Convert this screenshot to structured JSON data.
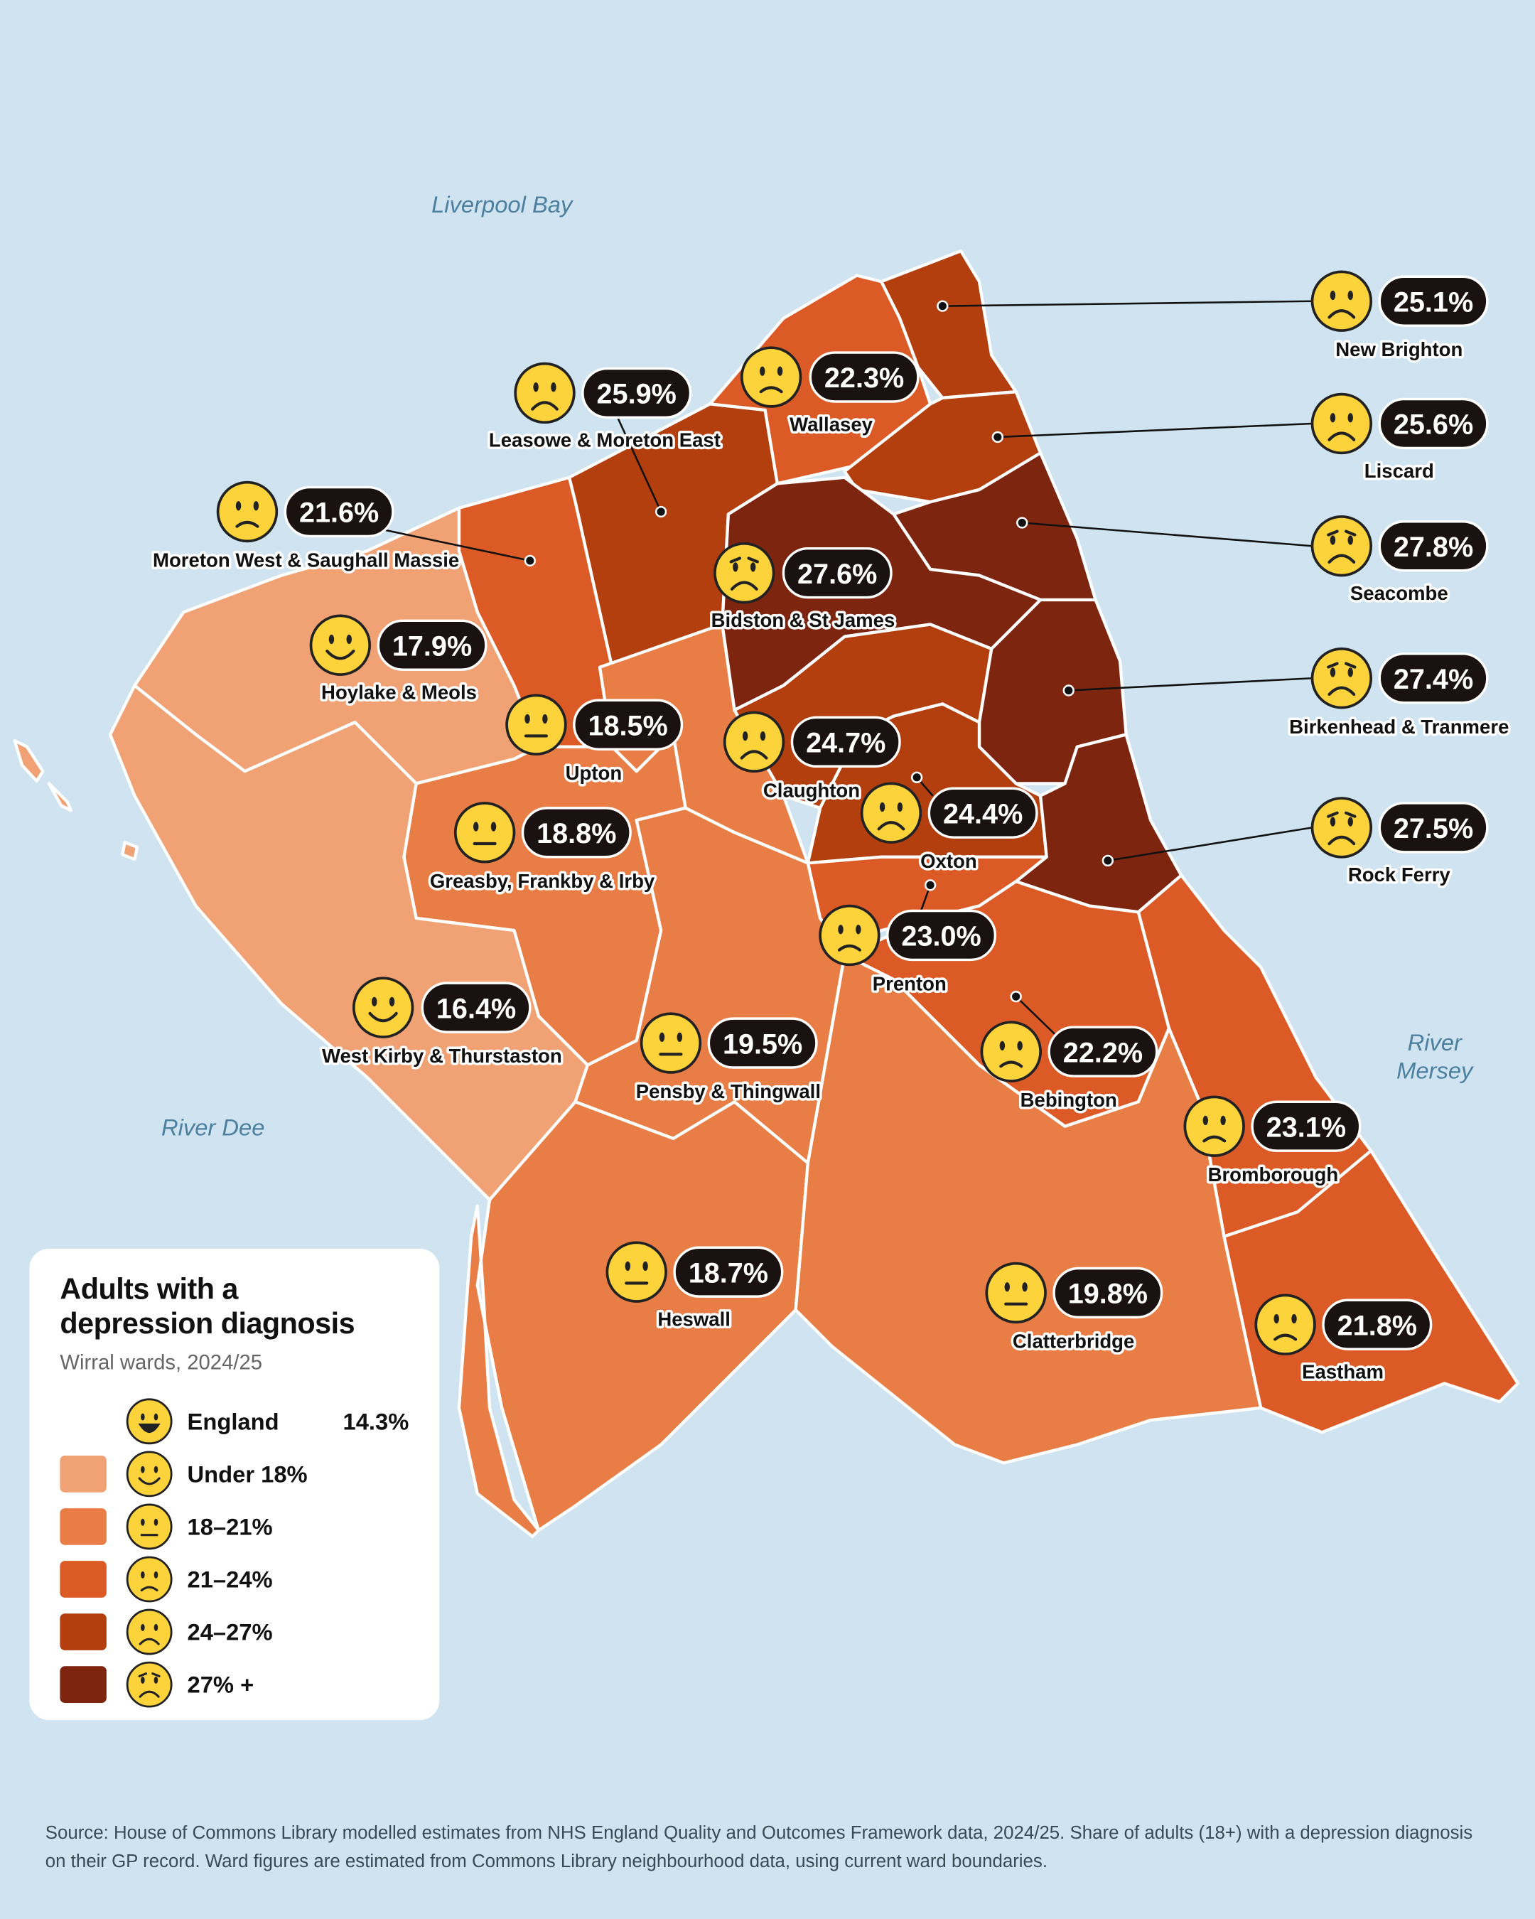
{
  "title": "Adults with a depression diagnosis",
  "subtitle": "Wirral wards, 2024/25",
  "water_labels": [
    "Liverpool Bay",
    "River Dee",
    "River Mersey"
  ],
  "england": {
    "label": "England",
    "value": 14.3,
    "value_label": "14.3%"
  },
  "breaks": [
    18,
    21,
    24,
    27
  ],
  "bins": [
    {
      "label": "Under 18%",
      "color": "#f0a275"
    },
    {
      "label": "18–21%",
      "color": "#e87d45"
    },
    {
      "label": "21–24%",
      "color": "#db5a25"
    },
    {
      "label": "24–27%",
      "color": "#b33e0e"
    },
    {
      "label": "27% +",
      "color": "#7e2510"
    }
  ],
  "wards": [
    {
      "name": "New Brighton",
      "value": 25.1,
      "value_label": "25.1%"
    },
    {
      "name": "Wallasey",
      "value": 22.3,
      "value_label": "22.3%"
    },
    {
      "name": "Liscard",
      "value": 25.6,
      "value_label": "25.6%"
    },
    {
      "name": "Leasowe & Moreton East",
      "value": 25.9,
      "value_label": "25.9%"
    },
    {
      "name": "Moreton West & Saughall Massie",
      "value": 21.6,
      "value_label": "21.6%"
    },
    {
      "name": "Seacombe",
      "value": 27.8,
      "value_label": "27.8%"
    },
    {
      "name": "Bidston & St James",
      "value": 27.6,
      "value_label": "27.6%"
    },
    {
      "name": "Hoylake & Meols",
      "value": 17.9,
      "value_label": "17.9%"
    },
    {
      "name": "Upton",
      "value": 18.5,
      "value_label": "18.5%"
    },
    {
      "name": "Claughton",
      "value": 24.7,
      "value_label": "24.7%"
    },
    {
      "name": "Birkenhead & Tranmere",
      "value": 27.4,
      "value_label": "27.4%"
    },
    {
      "name": "Oxton",
      "value": 24.4,
      "value_label": "24.4%"
    },
    {
      "name": "Greasby, Frankby & Irby",
      "value": 18.8,
      "value_label": "18.8%"
    },
    {
      "name": "Rock Ferry",
      "value": 27.5,
      "value_label": "27.5%"
    },
    {
      "name": "Prenton",
      "value": 23.0,
      "value_label": "23.0%"
    },
    {
      "name": "West Kirby & Thurstaston",
      "value": 16.4,
      "value_label": "16.4%"
    },
    {
      "name": "Pensby & Thingwall",
      "value": 19.5,
      "value_label": "19.5%"
    },
    {
      "name": "Bebington",
      "value": 22.2,
      "value_label": "22.2%"
    },
    {
      "name": "Bromborough",
      "value": 23.1,
      "value_label": "23.1%"
    },
    {
      "name": "Heswall",
      "value": 18.7,
      "value_label": "18.7%"
    },
    {
      "name": "Clatterbridge",
      "value": 19.8,
      "value_label": "19.8%"
    },
    {
      "name": "Eastham",
      "value": 21.8,
      "value_label": "21.8%"
    }
  ],
  "source": "Source: House of Commons Library modelled estimates from NHS England Quality and Outcomes Framework data, 2024/25. Share of adults (18+) with a depression diagnosis on their GP record. Ward figures are estimated from Commons Library neighbourhood data, using current ward boundaries."
}
